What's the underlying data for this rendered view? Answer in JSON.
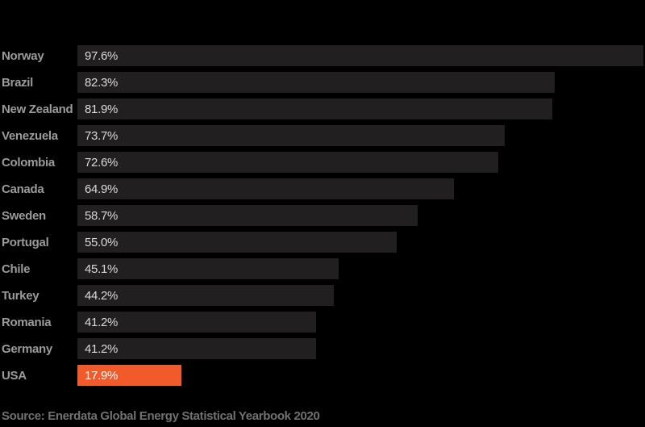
{
  "chart_data": {
    "type": "bar",
    "orientation": "horizontal",
    "title": "",
    "categories": [
      "Norway",
      "Brazil",
      "New Zealand",
      "Venezuela",
      "Colombia",
      "Canada",
      "Sweden",
      "Portugal",
      "Chile",
      "Turkey",
      "Romania",
      "Germany",
      "USA"
    ],
    "values": [
      97.6,
      82.3,
      81.9,
      73.7,
      72.6,
      64.9,
      58.7,
      55.0,
      45.1,
      44.2,
      41.2,
      41.2,
      17.9
    ],
    "value_labels": [
      "97.6%",
      "82.3%",
      "81.9%",
      "73.7%",
      "72.6%",
      "64.9%",
      "58.7%",
      "55.0%",
      "45.1%",
      "44.2%",
      "41.2%",
      "41.2%",
      "17.9%"
    ],
    "highlight_category": "USA",
    "xlim": [
      0,
      100
    ],
    "grid": false,
    "legend": false,
    "source_note": "Source: Enerdata Global Energy Statistical Yearbook 2020"
  },
  "colors": {
    "background": "#000000",
    "bar": "#221F20",
    "highlight": "#F15B2B",
    "category_label": "#9B9B9B",
    "value_label": "#D9D9D9",
    "highlight_value_label": "#FFFFFF",
    "source_text": "#717171"
  }
}
